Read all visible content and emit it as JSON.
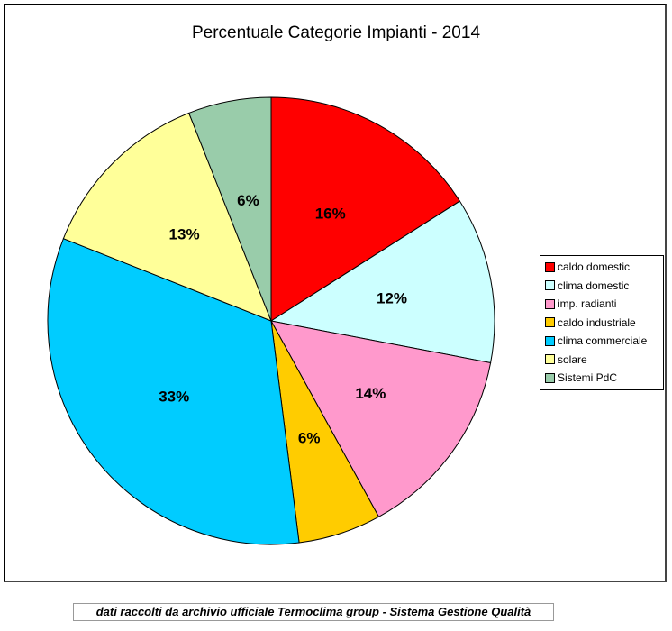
{
  "chart_data": {
    "type": "pie",
    "title": "Percentuale Categorie Impianti - 2014",
    "categories": [
      "caldo domestic",
      "clima domestic",
      "imp. radianti",
      "caldo industriale",
      "clima commerciale",
      "solare",
      "Sistemi PdC"
    ],
    "values": [
      16,
      12,
      14,
      6,
      33,
      13,
      6
    ],
    "data_labels": [
      "16%",
      "12%",
      "14%",
      "6%",
      "33%",
      "13%",
      "6%"
    ],
    "colors": [
      "#ff0000",
      "#ccffff",
      "#ff99cc",
      "#ffcc00",
      "#00ccff",
      "#ffff99",
      "#99ccaa"
    ],
    "start": "top",
    "direction": "clockwise",
    "legend_position": "right"
  },
  "footer": "dati raccolti da archivio ufficiale Termoclima group - Sistema Gestione Qualità"
}
